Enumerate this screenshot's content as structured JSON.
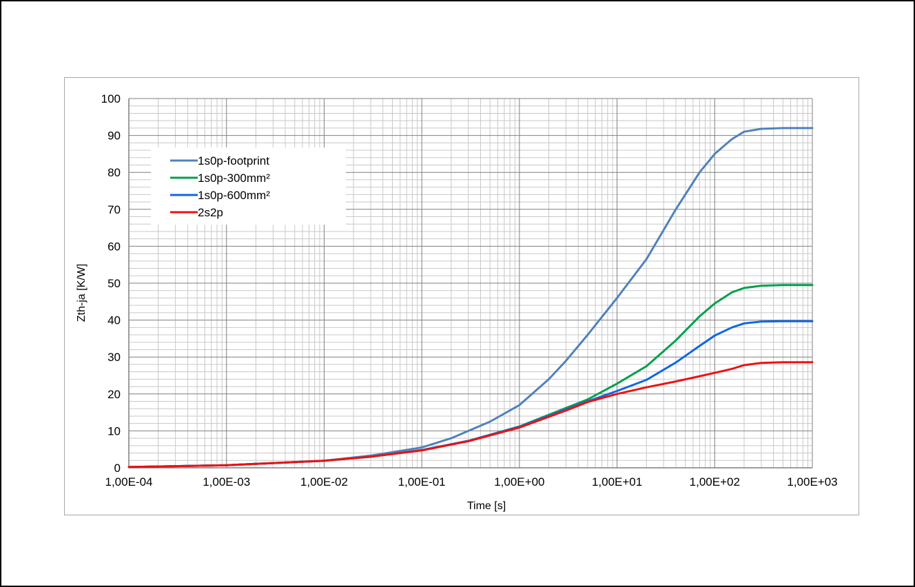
{
  "chart_data": {
    "type": "line",
    "xlabel": "Time [s]",
    "ylabel": "Zth-ja [K/W]",
    "x_scale": "log",
    "xlim": [
      0.0001,
      1000
    ],
    "ylim": [
      0,
      100
    ],
    "x_ticks": [
      0.0001,
      0.001,
      0.01,
      0.1,
      1,
      10,
      100,
      1000
    ],
    "x_tick_labels": [
      "1,00E-04",
      "1,00E-03",
      "1,00E-02",
      "1,00E-01",
      "1,00E+00",
      "1,00E+01",
      "1,00E+02",
      "1,00E+03"
    ],
    "y_ticks": [
      0,
      10,
      20,
      30,
      40,
      50,
      60,
      70,
      80,
      90,
      100
    ],
    "y_tick_labels": [
      "0",
      "10",
      "20",
      "30",
      "40",
      "50",
      "60",
      "70",
      "80",
      "90",
      "100"
    ],
    "grid": true,
    "legend_position": "top-left",
    "series": [
      {
        "name": "1s0p-footprint",
        "color": "#4f81bd",
        "points": [
          [
            0.0001,
            0.2
          ],
          [
            0.001,
            0.7
          ],
          [
            0.01,
            1.9
          ],
          [
            0.03,
            3.3
          ],
          [
            0.1,
            5.5
          ],
          [
            0.2,
            8.0
          ],
          [
            0.5,
            12.5
          ],
          [
            1,
            17
          ],
          [
            2,
            24
          ],
          [
            3,
            29
          ],
          [
            5,
            36
          ],
          [
            10,
            46
          ],
          [
            20,
            56.5
          ],
          [
            40,
            70
          ],
          [
            70,
            80
          ],
          [
            100,
            85
          ],
          [
            150,
            89
          ],
          [
            200,
            91
          ],
          [
            300,
            91.8
          ],
          [
            500,
            92
          ],
          [
            1000,
            92
          ]
        ]
      },
      {
        "name": "1s0p-300mm²",
        "color": "#00a04a",
        "points": [
          [
            0.0001,
            0.2
          ],
          [
            0.001,
            0.7
          ],
          [
            0.01,
            1.9
          ],
          [
            0.03,
            3.0
          ],
          [
            0.1,
            4.8
          ],
          [
            0.3,
            7.3
          ],
          [
            1,
            11.2
          ],
          [
            3,
            16.2
          ],
          [
            5,
            18.5
          ],
          [
            10,
            22.8
          ],
          [
            20,
            27.5
          ],
          [
            40,
            34.5
          ],
          [
            70,
            41
          ],
          [
            100,
            44.5
          ],
          [
            150,
            47.5
          ],
          [
            200,
            48.7
          ],
          [
            300,
            49.3
          ],
          [
            500,
            49.5
          ],
          [
            1000,
            49.5
          ]
        ]
      },
      {
        "name": "1s0p-600mm²",
        "color": "#1166e6",
        "points": [
          [
            0.0001,
            0.2
          ],
          [
            0.001,
            0.7
          ],
          [
            0.01,
            1.9
          ],
          [
            0.03,
            3.0
          ],
          [
            0.1,
            4.8
          ],
          [
            0.3,
            7.3
          ],
          [
            1,
            11.1
          ],
          [
            3,
            15.8
          ],
          [
            5,
            18
          ],
          [
            10,
            20.8
          ],
          [
            20,
            23.8
          ],
          [
            40,
            28.5
          ],
          [
            70,
            33
          ],
          [
            100,
            35.8
          ],
          [
            150,
            38
          ],
          [
            200,
            39.1
          ],
          [
            300,
            39.6
          ],
          [
            500,
            39.7
          ],
          [
            1000,
            39.7
          ]
        ]
      },
      {
        "name": "2s2p",
        "color": "#ee1111",
        "points": [
          [
            0.0001,
            0.2
          ],
          [
            0.001,
            0.7
          ],
          [
            0.01,
            1.9
          ],
          [
            0.03,
            3.0
          ],
          [
            0.1,
            4.7
          ],
          [
            0.3,
            7.2
          ],
          [
            1,
            10.9
          ],
          [
            3,
            15.5
          ],
          [
            5,
            17.8
          ],
          [
            10,
            20
          ],
          [
            20,
            21.8
          ],
          [
            40,
            23.4
          ],
          [
            70,
            24.8
          ],
          [
            100,
            25.7
          ],
          [
            150,
            26.8
          ],
          [
            200,
            27.8
          ],
          [
            300,
            28.4
          ],
          [
            500,
            28.6
          ],
          [
            1000,
            28.6
          ]
        ]
      }
    ]
  }
}
